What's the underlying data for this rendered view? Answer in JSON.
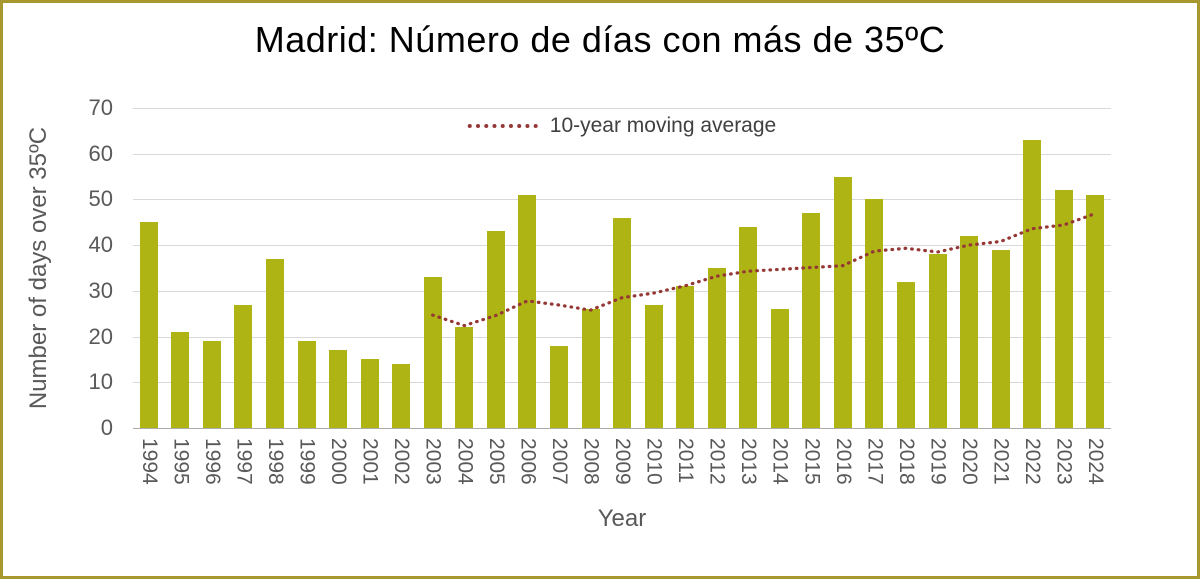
{
  "frame": {
    "border_color": "#a6982e",
    "background": "#ffffff"
  },
  "chart_data": {
    "type": "bar",
    "title": "Madrid: Número de días con más de 35ºC",
    "xlabel": "Year",
    "ylabel": "Number of days over 35ºC",
    "ylim": [
      0,
      70
    ],
    "yticks": [
      0,
      10,
      20,
      30,
      40,
      50,
      60,
      70
    ],
    "grid": true,
    "legend_position": "top-center",
    "text_color": "#595959",
    "gridline_color": "#d9d9d9",
    "bar_color": "#aeb414",
    "categories": [
      "1994",
      "1995",
      "1996",
      "1997",
      "1998",
      "1999",
      "2000",
      "2001",
      "2002",
      "2003",
      "2004",
      "2005",
      "2006",
      "2007",
      "2008",
      "2009",
      "2010",
      "2011",
      "2012",
      "2013",
      "2014",
      "2015",
      "2016",
      "2017",
      "2018",
      "2019",
      "2020",
      "2021",
      "2022",
      "2023",
      "2024"
    ],
    "values": [
      45,
      21,
      19,
      27,
      37,
      19,
      17,
      15,
      14,
      33,
      22,
      43,
      51,
      18,
      26,
      46,
      27,
      31,
      35,
      44,
      26,
      47,
      55,
      50,
      32,
      38,
      42,
      39,
      63,
      52,
      51
    ],
    "moving_average": {
      "label": "10-year moving average",
      "window": 10,
      "style": "dotted",
      "color": "#953735",
      "values": [
        null,
        null,
        null,
        null,
        null,
        null,
        null,
        null,
        null,
        24.7,
        22.4,
        24.6,
        27.8,
        26.9,
        25.8,
        28.5,
        29.5,
        31.1,
        33.2,
        34.3,
        34.7,
        35.1,
        35.5,
        38.7,
        39.3,
        38.5,
        40,
        40.8,
        43.6,
        44.4,
        46.9
      ]
    }
  }
}
